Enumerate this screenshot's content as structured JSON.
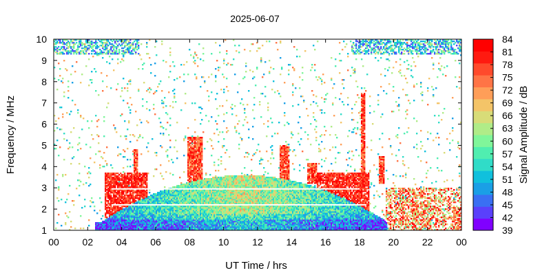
{
  "chart_data": {
    "type": "heatmap",
    "title": "2025-06-07",
    "xlabel": "UT Time / hrs",
    "ylabel": "Frequency / MHz",
    "colorbar_label": "Signal Amplitude / dB",
    "xlim": [
      0,
      24
    ],
    "ylim": [
      1,
      10
    ],
    "x_ticks": [
      "00",
      "02",
      "04",
      "06",
      "08",
      "10",
      "12",
      "14",
      "16",
      "18",
      "20",
      "22",
      "00"
    ],
    "y_ticks": [
      "1",
      "2",
      "3",
      "4",
      "5",
      "6",
      "7",
      "8",
      "9",
      "10"
    ],
    "colorbar_ticks": [
      "39",
      "42",
      "45",
      "48",
      "51",
      "54",
      "57",
      "60",
      "63",
      "66",
      "69",
      "72",
      "75",
      "78",
      "81",
      "84"
    ],
    "colorbar_range": [
      39,
      84
    ],
    "colorscale": [
      "#8000ff",
      "#5a40fb",
      "#3a6ff3",
      "#1a9fe6",
      "#10c0dd",
      "#30dcc8",
      "#50eeb0",
      "#80f69a",
      "#b0ec88",
      "#d8dc78",
      "#f4c468",
      "#ff9e58",
      "#ff7446",
      "#ff4a2c",
      "#ff1a10",
      "#ff0000"
    ],
    "grid": false,
    "features": [
      {
        "name": "daytime ionospheric band",
        "time_range": [
          2.5,
          19.5
        ],
        "freq_top_max": 3.6,
        "amplitude_range": [
          45,
          63
        ]
      },
      {
        "name": "sporadic-E burst",
        "time": 8.3,
        "freq_top": 5.4,
        "amplitude_peak": 84
      },
      {
        "name": "sporadic-E burst",
        "time": 13.6,
        "freq_top": 5.0,
        "amplitude_peak": 81
      },
      {
        "name": "sporadic-E burst",
        "time": 18.2,
        "freq_top": 7.5,
        "amplitude_peak": 84
      },
      {
        "name": "sporadic-E burst",
        "time": 19.3,
        "freq_top": 4.5,
        "amplitude_peak": 84
      },
      {
        "name": "nighttime activity",
        "time_range": [
          20,
          24
        ],
        "freq_top_max": 3.0,
        "amplitude_range": [
          63,
          84
        ]
      }
    ]
  }
}
